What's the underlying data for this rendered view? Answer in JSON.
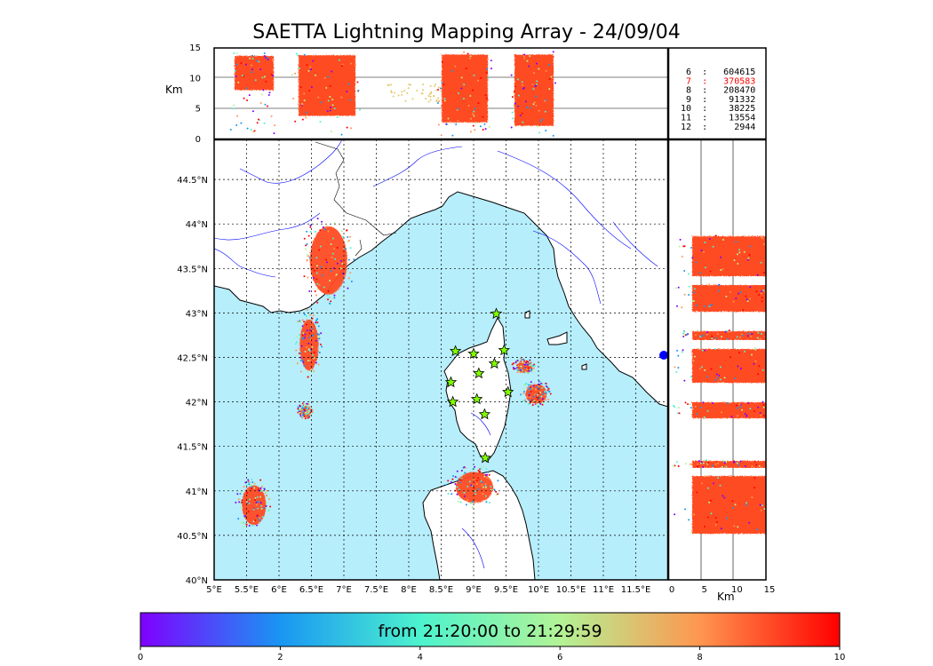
{
  "title": "SAETTA Lightning Mapping Array - 24/09/04",
  "chart_data": [
    {
      "type": "scatter",
      "panel": "map",
      "x_ticks": [
        "5°E",
        "5.5°E",
        "6°E",
        "6.5°E",
        "7°E",
        "7.5°E",
        "8°E",
        "8.5°E",
        "9°E",
        "9.5°E",
        "10°E",
        "10.5°E",
        "11°E",
        "11.5°E"
      ],
      "y_ticks": [
        "40°N",
        "40.5°N",
        "41°N",
        "41.5°N",
        "42°N",
        "42.5°N",
        "43°N",
        "43.5°N",
        "44°N",
        "44.5°N"
      ],
      "xlim": [
        5,
        12
      ],
      "ylim": [
        40,
        44.95
      ],
      "grid": true,
      "stations": [
        {
          "lon": 9.35,
          "lat": 42.99
        },
        {
          "lon": 8.72,
          "lat": 42.57
        },
        {
          "lon": 9.0,
          "lat": 42.54
        },
        {
          "lon": 9.47,
          "lat": 42.58
        },
        {
          "lon": 9.32,
          "lat": 42.43
        },
        {
          "lon": 9.08,
          "lat": 42.32
        },
        {
          "lon": 8.65,
          "lat": 42.22
        },
        {
          "lon": 9.53,
          "lat": 42.11
        },
        {
          "lon": 9.05,
          "lat": 42.03
        },
        {
          "lon": 8.68,
          "lat": 42.0
        },
        {
          "lon": 9.17,
          "lat": 41.86
        },
        {
          "lon": 9.18,
          "lat": 41.37
        }
      ],
      "lightning_clusters": [
        {
          "lon": 6.75,
          "lat": 43.6
        },
        {
          "lon": 6.45,
          "lat": 42.65
        },
        {
          "lon": 6.4,
          "lat": 41.9
        },
        {
          "lon": 5.6,
          "lat": 40.85
        },
        {
          "lon": 9.0,
          "lat": 41.05
        },
        {
          "lon": 9.95,
          "lat": 42.1
        },
        {
          "lon": 9.77,
          "lat": 42.4
        }
      ]
    },
    {
      "type": "scatter",
      "panel": "lon-height",
      "ylabel": "Km",
      "y_ticks": [
        "0",
        "5",
        "10",
        "15"
      ],
      "ylim": [
        0,
        15
      ]
    },
    {
      "type": "scatter",
      "panel": "height-lat",
      "xlabel": "Km",
      "x_ticks": [
        "0",
        "5",
        "10",
        "15"
      ],
      "xlim": [
        0,
        15
      ]
    },
    {
      "type": "table",
      "panel": "station-count",
      "rows": [
        {
          "text": " 6  :   604615",
          "color": "#000000"
        },
        {
          "text": " 7  :   370583",
          "color": "#ff0000"
        },
        {
          "text": " 8  :   208470",
          "color": "#000000"
        },
        {
          "text": " 9  :    91332",
          "color": "#000000"
        },
        {
          "text": "10  :    38225",
          "color": "#000000"
        },
        {
          "text": "11  :    13554",
          "color": "#000000"
        },
        {
          "text": "12  :     2944",
          "color": "#000000"
        }
      ]
    },
    {
      "type": "heatmap",
      "panel": "colorbar",
      "label": "from 21:20:00 to 21:29:59",
      "ticks": [
        "0",
        "2",
        "4",
        "6",
        "8",
        "10"
      ],
      "range": [
        0,
        10
      ],
      "colors": [
        "#7f00ff",
        "#1996f3",
        "#4df3ce",
        "#b2f396",
        "#ff964f",
        "#ff0000"
      ]
    }
  ],
  "colors": {
    "sea": "#b7eefc",
    "land": "#ffffff",
    "rivers": "#0000ff",
    "lightning_main": "#ff4c24"
  }
}
